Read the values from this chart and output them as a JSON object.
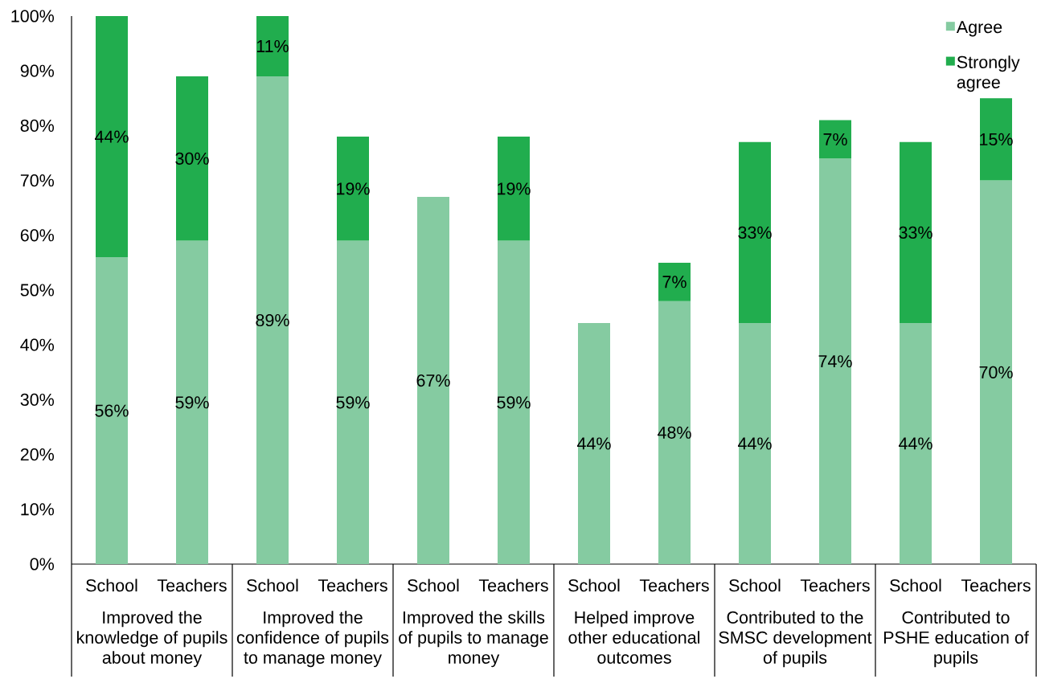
{
  "chart_data": {
    "type": "bar",
    "stacked": true,
    "categories": [
      "School",
      "Teachers",
      "School",
      "Teachers",
      "School",
      "Teachers",
      "School",
      "Teachers",
      "School",
      "Teachers",
      "School",
      "Teachers"
    ],
    "series": [
      {
        "name": "Agree",
        "color": "#85cba1",
        "values": [
          56,
          59,
          89,
          59,
          67,
          59,
          44,
          48,
          44,
          74,
          44,
          70
        ],
        "value_labels": [
          "56%",
          "59%",
          "89%",
          "59%",
          "67%",
          "59%",
          "44%",
          "48%",
          "44%",
          "74%",
          "44%",
          "70%"
        ]
      },
      {
        "name": "Strongly agree",
        "color": "#21ad4e",
        "values": [
          44,
          30,
          11,
          19,
          null,
          19,
          null,
          7,
          33,
          7,
          33,
          15
        ],
        "value_labels": [
          "44%",
          "30%",
          "11%",
          "19%",
          null,
          "19%",
          null,
          "7%",
          "33%",
          "7%",
          "33%",
          "15%"
        ]
      }
    ],
    "ylim": [
      0,
      100
    ],
    "yticks": [
      {
        "value": 0,
        "label": "0%"
      },
      {
        "value": 10,
        "label": "10%"
      },
      {
        "value": 20,
        "label": "20%"
      },
      {
        "value": 30,
        "label": "30%"
      },
      {
        "value": 40,
        "label": "40%"
      },
      {
        "value": 50,
        "label": "50%"
      },
      {
        "value": 60,
        "label": "60%"
      },
      {
        "value": 70,
        "label": "70%"
      },
      {
        "value": 80,
        "label": "80%"
      },
      {
        "value": 90,
        "label": "90%"
      },
      {
        "value": 100,
        "label": "100%"
      }
    ],
    "annotations": [
      "Improved the knowledge of pupils about money",
      "Improved the confidence of pupils to manage money",
      "Improved the skills of pupils to manage money",
      "Helped improve other educational outcomes",
      "Contributed to the SMSC development of pupils",
      "Contributed to PSHE education of pupils"
    ],
    "legend": "top right"
  }
}
